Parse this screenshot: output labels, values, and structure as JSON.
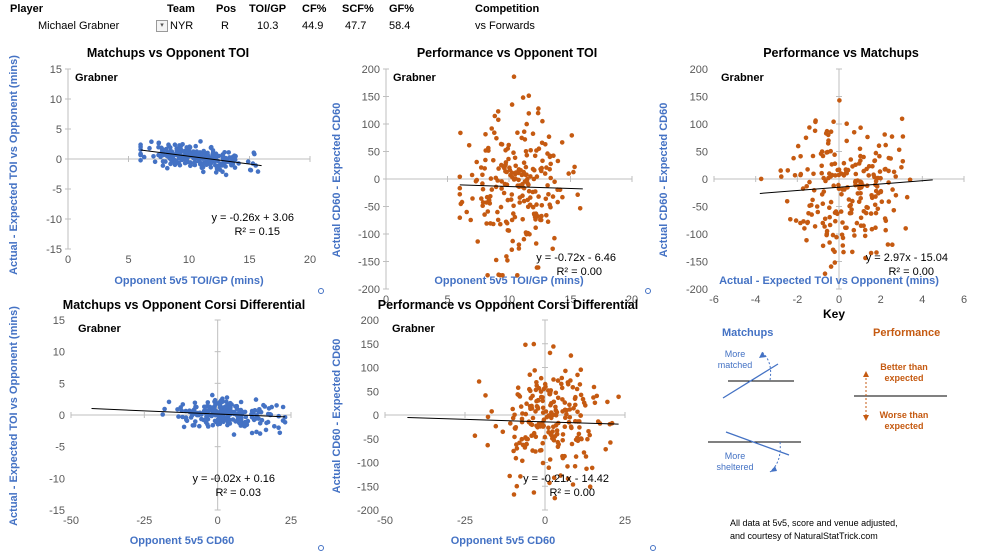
{
  "header": {
    "labels": {
      "player": "Player",
      "team": "Team",
      "pos": "Pos",
      "toi": "TOI/GP",
      "cf": "CF%",
      "scf": "SCF%",
      "gf": "GF%",
      "competition": "Competition"
    },
    "values": {
      "player": "Michael Grabner",
      "dropdown": "▾",
      "team": "NYR",
      "pos": "R",
      "toi": "10.3",
      "cf": "44.9",
      "scf": "47.7",
      "gf": "58.4",
      "competition": "vs Forwards"
    }
  },
  "colors": {
    "blue": "#4472c4",
    "orange": "#c55a11",
    "axis": "#bfbfbf"
  },
  "chart_data": [
    {
      "id": "c1",
      "type": "scatter",
      "title": "Matchups vs Opponent TOI",
      "label": "Grabner",
      "xlabel": "Opponent 5v5 TOI/GP (mins)",
      "ylabel": "Actual - Expected TOI vs Opponent (mins)",
      "xlim": [
        0,
        20
      ],
      "ylim": [
        -15,
        15
      ],
      "xticks": [
        0,
        5,
        10,
        15,
        20
      ],
      "yticks": [
        -15,
        -10,
        -5,
        0,
        5,
        10,
        15
      ],
      "cross": {
        "x": 0,
        "y": 0
      },
      "slope": -0.26,
      "intercept": 3.06,
      "equation": "y = -0.26x + 3.06",
      "r2": "R² = 0.15",
      "color": "#4472c4",
      "points": {
        "count": 230,
        "x_mean": 10.5,
        "x_sd": 2.1,
        "x_min": 6.0,
        "x_max": 16.0,
        "y_sd": 1.0,
        "y_min": -4.0,
        "y_max": 4.5,
        "seed": 11
      }
    },
    {
      "id": "c2",
      "type": "scatter",
      "title": "Performance vs Opponent TOI",
      "label": "Grabner",
      "xlabel": "Opponent 5v5 TOI/GP (mins)",
      "ylabel": "Actual CD60 - Expected CD60",
      "xlim": [
        0,
        20
      ],
      "ylim": [
        -200,
        200
      ],
      "xticks": [
        0,
        5,
        10,
        15,
        20
      ],
      "yticks": [
        -200,
        -150,
        -100,
        -50,
        0,
        50,
        100,
        150,
        200
      ],
      "cross": {
        "x": 0,
        "y": 0
      },
      "slope": -0.72,
      "intercept": -6.46,
      "equation": "y = -0.72x - 6.46",
      "r2": "R² = 0.00",
      "color": "#c55a11",
      "points": {
        "count": 230,
        "x_mean": 10.5,
        "x_sd": 2.1,
        "x_min": 6.0,
        "x_max": 16.0,
        "y_sd": 65,
        "y_min": -175,
        "y_max": 190,
        "seed": 23
      }
    },
    {
      "id": "c3",
      "type": "scatter",
      "title": "Performance vs Matchups",
      "label": "Grabner",
      "xlabel": "Actual - Expected TOI vs Opponent (mins)",
      "ylabel": "Actual CD60 - Expected CD60",
      "xlim": [
        -6,
        6
      ],
      "ylim": [
        -200,
        200
      ],
      "xticks": [
        -6,
        -4,
        -2,
        0,
        2,
        4,
        6
      ],
      "yticks": [
        -200,
        -150,
        -100,
        -50,
        0,
        50,
        100,
        150,
        200
      ],
      "cross": {
        "x": 0,
        "y": 0
      },
      "slope": 2.97,
      "intercept": -15.04,
      "equation": "y = 2.97x - 15.04",
      "r2": "R² = 0.00",
      "color": "#c55a11",
      "points": {
        "count": 230,
        "x_mean": 0.3,
        "x_sd": 1.3,
        "x_min": -3.8,
        "x_max": 4.5,
        "y_sd": 65,
        "y_min": -175,
        "y_max": 190,
        "seed": 37
      }
    },
    {
      "id": "c4",
      "type": "scatter",
      "title": "Matchups vs Opponent Corsi Differential",
      "label": "Grabner",
      "xlabel": "Opponent 5v5 CD60",
      "ylabel": "Actual - Expected TOI vs Opponent (mins)",
      "xlim": [
        -50,
        25
      ],
      "ylim": [
        -15,
        15
      ],
      "xticks": [
        -50,
        -25,
        0,
        25
      ],
      "yticks": [
        -15,
        -10,
        -5,
        0,
        5,
        10,
        15
      ],
      "cross": {
        "x": 0,
        "y": 0
      },
      "slope": -0.02,
      "intercept": 0.16,
      "equation": "y = -0.02x + 0.16",
      "r2": "R² = 0.03",
      "color": "#4472c4",
      "points": {
        "count": 230,
        "x_mean": 3,
        "x_sd": 9,
        "x_min": -43,
        "x_max": 23,
        "y_sd": 1.1,
        "y_min": -4.0,
        "y_max": 4.0,
        "seed": 41
      }
    },
    {
      "id": "c5",
      "type": "scatter",
      "title": "Performance vs Opponent Corsi Differential",
      "label": "Grabner",
      "xlabel": "Opponent 5v5 CD60",
      "ylabel": "Actual CD60 - Expected CD60",
      "xlim": [
        -50,
        25
      ],
      "ylim": [
        -200,
        200
      ],
      "xticks": [
        -50,
        -25,
        0,
        25
      ],
      "yticks": [
        -200,
        -150,
        -100,
        -50,
        0,
        50,
        100,
        150,
        200
      ],
      "cross": {
        "x": 0,
        "y": 0
      },
      "slope": -0.21,
      "intercept": -14.42,
      "equation": "y = -0.21x - 14.42",
      "r2": "R² = 0.00",
      "color": "#c55a11",
      "points": {
        "count": 230,
        "x_mean": 2,
        "x_sd": 9,
        "x_min": -43,
        "x_max": 23,
        "y_sd": 65,
        "y_min": -175,
        "y_max": 190,
        "seed": 53
      }
    }
  ],
  "key": {
    "title": "Key",
    "matchups": "Matchups",
    "performance": "Performance",
    "more_matched": "More matched",
    "more_sheltered": "More sheltered",
    "better": "Better than expected",
    "worse": "Worse than expected"
  },
  "footer": {
    "line1": "All data at 5v5, score and venue adjusted,",
    "line2": "and courtesy of NaturalStatTrick.com"
  }
}
